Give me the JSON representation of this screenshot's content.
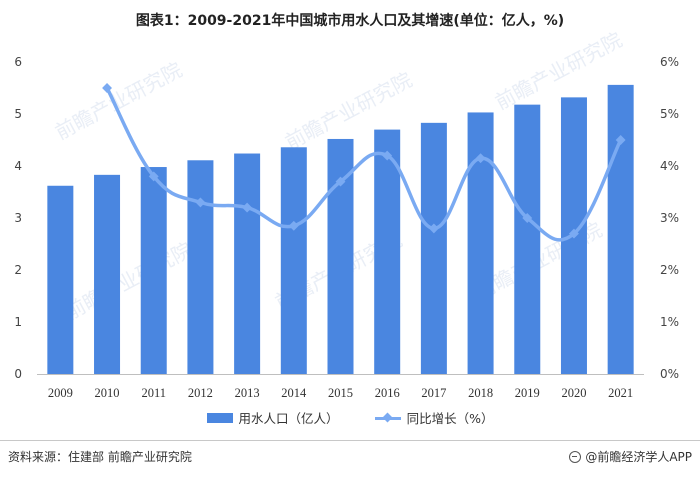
{
  "chart_data": {
    "type": "bar",
    "title": "图表1：2009-2021年中国城市用水人口及其增速(单位：亿人，%)",
    "categories": [
      "2009",
      "2010",
      "2011",
      "2012",
      "2013",
      "2014",
      "2015",
      "2016",
      "2017",
      "2018",
      "2019",
      "2020",
      "2021"
    ],
    "series": [
      {
        "name": "用水人口（亿人）",
        "type": "bar",
        "axis": "left",
        "color": "#4a86e0",
        "values": [
          3.62,
          3.83,
          3.98,
          4.11,
          4.24,
          4.36,
          4.52,
          4.7,
          4.83,
          5.03,
          5.18,
          5.32,
          5.56
        ]
      },
      {
        "name": "同比增长（%）",
        "type": "line",
        "axis": "right",
        "color": "#7aaaf2",
        "values": [
          null,
          5.5,
          3.8,
          3.3,
          3.2,
          2.85,
          3.7,
          4.2,
          2.8,
          4.15,
          3.0,
          2.7,
          4.5
        ]
      }
    ],
    "y_left": {
      "ticks": [
        "0",
        "1",
        "2",
        "3",
        "4",
        "5",
        "6"
      ],
      "ylim": [
        0,
        6
      ]
    },
    "y_right": {
      "ticks": [
        "0%",
        "1%",
        "2%",
        "3%",
        "4%",
        "5%",
        "6%"
      ],
      "ylim": [
        0,
        6
      ]
    },
    "grid": false,
    "legend_position": "bottom"
  },
  "source": "资料来源：住建部 前瞻产业研究院",
  "brand": "@前瞻经济学人APP",
  "watermark": "前瞻产业研究院"
}
